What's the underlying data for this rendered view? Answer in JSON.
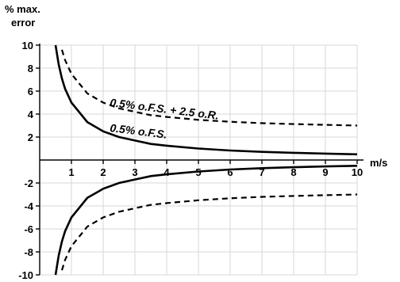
{
  "chart_data": {
    "type": "line",
    "ylabel_line1": "% max.",
    "ylabel_line2": "error",
    "xlabel": "m/s",
    "xlim": [
      0,
      10
    ],
    "ylim": [
      -10,
      10
    ],
    "x_ticks": [
      1,
      2,
      3,
      4,
      5,
      6,
      7,
      8,
      9,
      10
    ],
    "y_ticks": [
      10,
      8,
      6,
      4,
      2,
      -2,
      -4,
      -6,
      -8,
      -10
    ],
    "grid": true,
    "series": [
      {
        "name": "0.5% o.F.S.",
        "style": "solid",
        "x": [
          0.5,
          0.6,
          0.7,
          0.8,
          1,
          1.5,
          2,
          2.5,
          3,
          3.5,
          4,
          5,
          6,
          7,
          8,
          9,
          10
        ],
        "values": [
          10,
          8.3,
          7.1,
          6.2,
          5,
          3.3,
          2.5,
          2.0,
          1.7,
          1.4,
          1.25,
          1.0,
          0.83,
          0.71,
          0.63,
          0.56,
          0.5
        ]
      },
      {
        "name": "0.5% o.F.S. + 2.5 o.R.",
        "style": "dashed",
        "x": [
          0.7,
          0.8,
          1,
          1.5,
          2,
          2.5,
          3,
          3.5,
          4,
          5,
          6,
          7,
          8,
          9,
          10
        ],
        "values": [
          9.6,
          8.7,
          7.5,
          5.8,
          5.0,
          4.5,
          4.2,
          3.9,
          3.75,
          3.5,
          3.33,
          3.21,
          3.13,
          3.06,
          3.0
        ]
      },
      {
        "name": "",
        "style": "solid",
        "x": [
          0.5,
          0.6,
          0.7,
          0.8,
          1,
          1.5,
          2,
          2.5,
          3,
          3.5,
          4,
          5,
          6,
          7,
          8,
          9,
          10
        ],
        "values": [
          -10,
          -8.3,
          -7.1,
          -6.2,
          -5,
          -3.3,
          -2.5,
          -2.0,
          -1.7,
          -1.4,
          -1.25,
          -1.0,
          -0.83,
          -0.71,
          -0.63,
          -0.56,
          -0.5
        ]
      },
      {
        "name": "",
        "style": "dashed",
        "x": [
          0.7,
          0.8,
          1,
          1.5,
          2,
          2.5,
          3,
          3.5,
          4,
          5,
          6,
          7,
          8,
          9,
          10
        ],
        "values": [
          -9.6,
          -8.7,
          -7.5,
          -5.8,
          -5.0,
          -4.5,
          -4.2,
          -3.9,
          -3.75,
          -3.5,
          -3.33,
          -3.21,
          -3.13,
          -3.06,
          -3.0
        ]
      }
    ],
    "annotations": [
      "0.5% o.F.S. + 2.5 o.R.",
      "0.5% o.F.S."
    ]
  }
}
